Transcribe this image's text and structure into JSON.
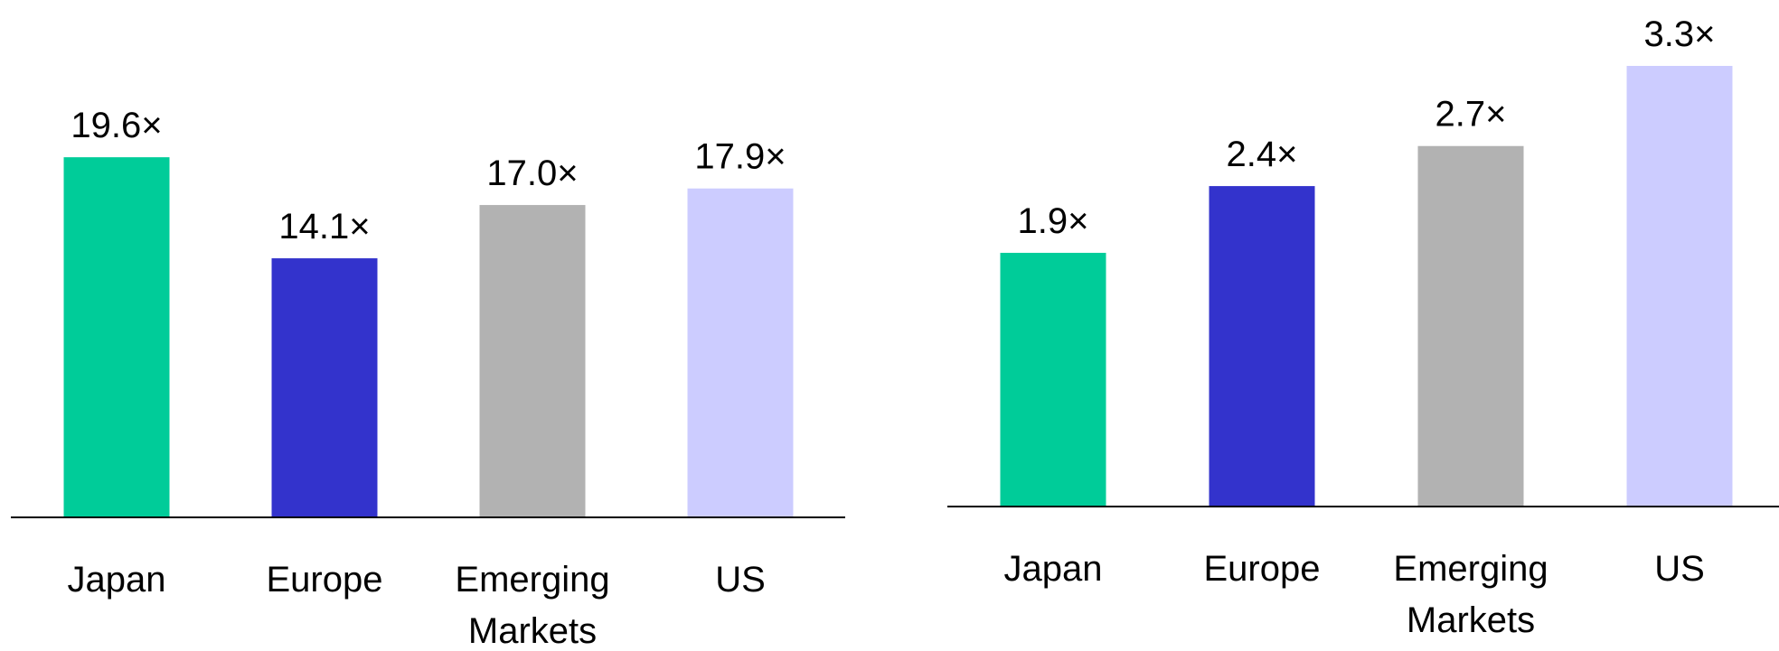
{
  "chart_data": [
    {
      "type": "bar",
      "categories": [
        "Japan",
        "Europe",
        "Emerging Markets",
        "US"
      ],
      "category_lines": [
        [
          "Japan"
        ],
        [
          "Europe"
        ],
        [
          "Emerging",
          "Markets"
        ],
        [
          "US"
        ]
      ],
      "values": [
        19.6,
        14.1,
        17.0,
        17.9
      ],
      "value_labels": [
        "19.6×",
        "14.1×",
        "17.0×",
        "17.9×"
      ],
      "colors": [
        "#00CC99",
        "#3333CC",
        "#B2B2B2",
        "#CCCCFF"
      ],
      "ylim": [
        0,
        20
      ],
      "grid": false
    },
    {
      "type": "bar",
      "categories": [
        "Japan",
        "Europe",
        "Emerging Markets",
        "US"
      ],
      "category_lines": [
        [
          "Japan"
        ],
        [
          "Europe"
        ],
        [
          "Emerging",
          "Markets"
        ],
        [
          "US"
        ]
      ],
      "values": [
        1.9,
        2.4,
        2.7,
        3.3
      ],
      "value_labels": [
        "1.9×",
        "2.4×",
        "2.7×",
        "3.3×"
      ],
      "colors": [
        "#00CC99",
        "#3333CC",
        "#B2B2B2",
        "#CCCCFF"
      ],
      "ylim": [
        0,
        3.3
      ],
      "grid": false
    }
  ]
}
